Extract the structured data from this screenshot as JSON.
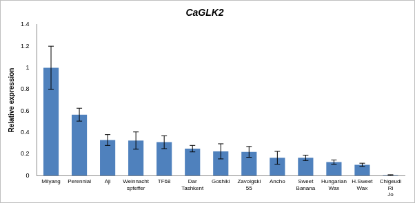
{
  "chart_data": {
    "type": "bar",
    "title": "CaGLK2",
    "y_label": "Relative expression",
    "categories": [
      "Milyang",
      "Perennial",
      "Aji",
      "Weinnacht spfeffer",
      "TF68",
      "Dar Tashkent",
      "Goshiki",
      "Zavoigski 55",
      "Ancho",
      "Sweet Banana",
      "Hungarian Wax",
      "H.Sweet Wax",
      "Chigeudi Ri Jo"
    ],
    "values": [
      1.0,
      0.565,
      0.33,
      0.325,
      0.31,
      0.25,
      0.225,
      0.22,
      0.165,
      0.165,
      0.125,
      0.1,
      0.005
    ],
    "errors": [
      0.2,
      0.06,
      0.05,
      0.08,
      0.06,
      0.03,
      0.07,
      0.05,
      0.06,
      0.025,
      0.02,
      0.015,
      0.003
    ],
    "color": "#4f81bd",
    "ylim": [
      0,
      1.4
    ],
    "yticks": [
      0,
      0.2,
      0.4,
      0.6,
      0.8,
      1,
      1.2,
      1.4
    ],
    "grid": false
  }
}
